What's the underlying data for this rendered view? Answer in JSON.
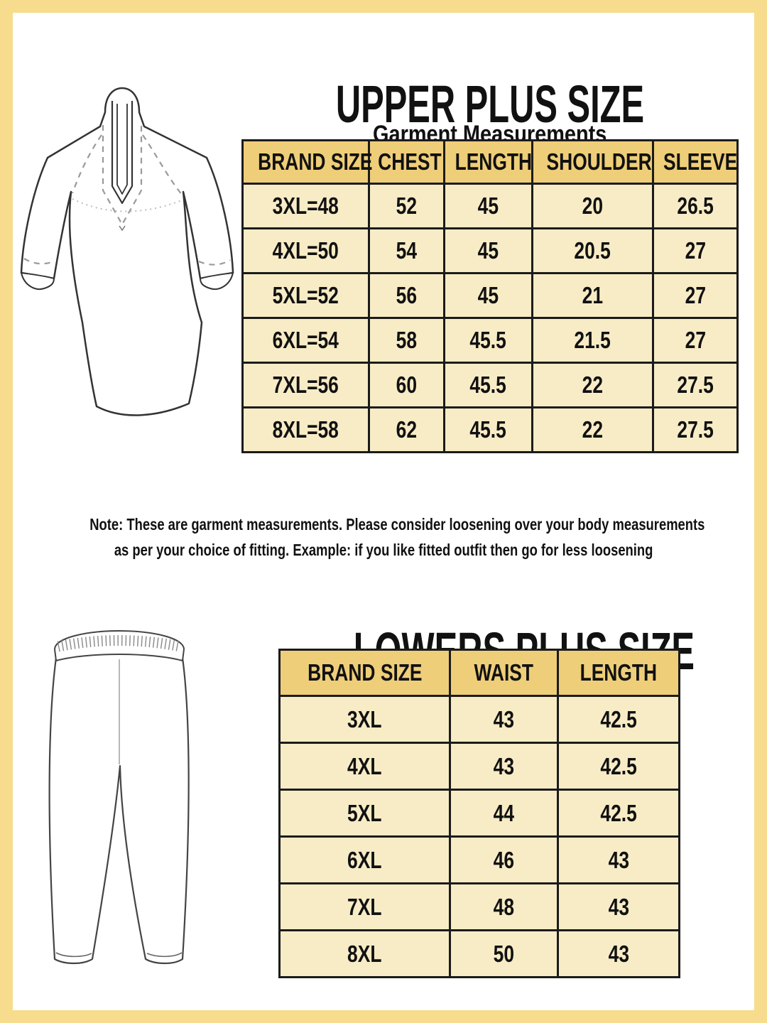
{
  "colors": {
    "frame": "#F6DC8C",
    "table_header_bg": "#EFCE79",
    "table_row_bg": "#F8ECC6",
    "table_border": "#1b1b1b",
    "text": "#111111",
    "line_art_outline": "#333333",
    "line_art_dashed_seam": "#9a9a9a"
  },
  "upper": {
    "title": "UPPER PLUS SIZE",
    "subtitle": "Garment Measurements",
    "table": {
      "headers": [
        "BRAND SIZE",
        "CHEST",
        "LENGTH",
        "SHOULDER",
        "SLEEVE"
      ],
      "rows": [
        [
          "3XL=48",
          "52",
          "45",
          "20",
          "26.5"
        ],
        [
          "4XL=50",
          "54",
          "45",
          "20.5",
          "27"
        ],
        [
          "5XL=52",
          "56",
          "45",
          "21",
          "27"
        ],
        [
          "6XL=54",
          "58",
          "45.5",
          "21.5",
          "27"
        ],
        [
          "7XL=56",
          "60",
          "45.5",
          "22",
          "27.5"
        ],
        [
          "8XL=58",
          "62",
          "45.5",
          "22",
          "27.5"
        ]
      ]
    }
  },
  "note": {
    "line1": "Note: These are garment measurements. Please consider loosening over your body measurements",
    "line2": "as per your choice of fitting. Example: if you like fitted outfit then go for less loosening"
  },
  "lower": {
    "title": "LOWERS PLUS SIZE",
    "table": {
      "headers": [
        "BRAND SIZE",
        "WAIST",
        "LENGTH"
      ],
      "rows": [
        [
          "3XL",
          "43",
          "42.5"
        ],
        [
          "4XL",
          "43",
          "42.5"
        ],
        [
          "5XL",
          "44",
          "42.5"
        ],
        [
          "6XL",
          "46",
          "43"
        ],
        [
          "7XL",
          "48",
          "43"
        ],
        [
          "8XL",
          "50",
          "43"
        ]
      ]
    }
  },
  "illustrations": {
    "kurta": "kurta-line-drawing",
    "pants": "pants-line-drawing"
  }
}
